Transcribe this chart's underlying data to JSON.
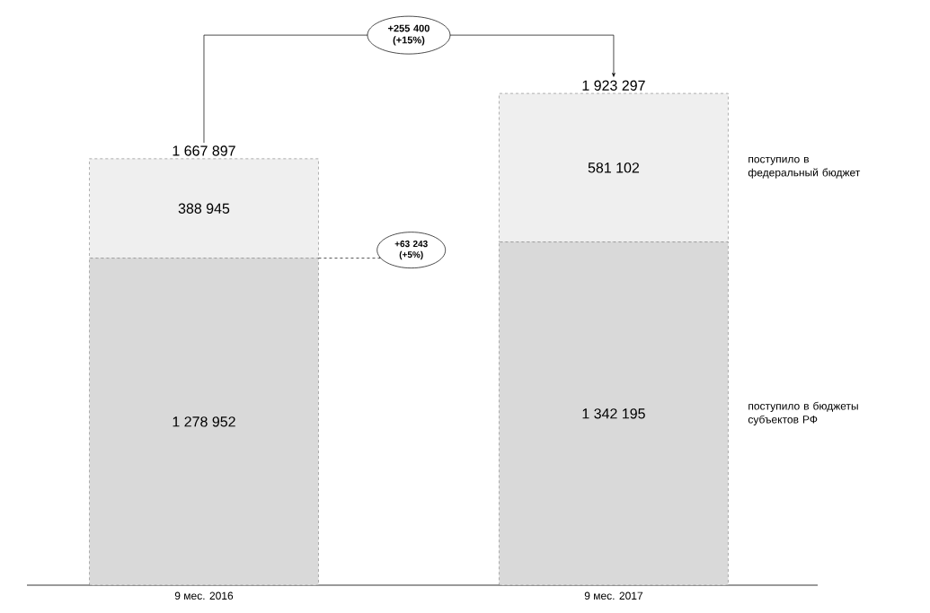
{
  "chart_data": {
    "type": "bar",
    "stacked": true,
    "legend": false,
    "categories": [
      "9 мес. 2016",
      "9 мес. 2017"
    ],
    "series": [
      {
        "name": "поступило в бюджеты субъектов РФ",
        "color": "#d9d9d9",
        "values": [
          1278952,
          1342195
        ],
        "value_labels": [
          "1 278 952",
          "1 342 195"
        ]
      },
      {
        "name": "поступило в федеральный бюджет",
        "color": "#efefef",
        "values": [
          388945,
          581102
        ],
        "value_labels": [
          "388 945",
          "581 102"
        ]
      }
    ],
    "totals": [
      "1 667 897",
      "1 923 297"
    ],
    "annotations": [
      "+255 400 (+15%)",
      "+63 243 (+5%)"
    ]
  }
}
